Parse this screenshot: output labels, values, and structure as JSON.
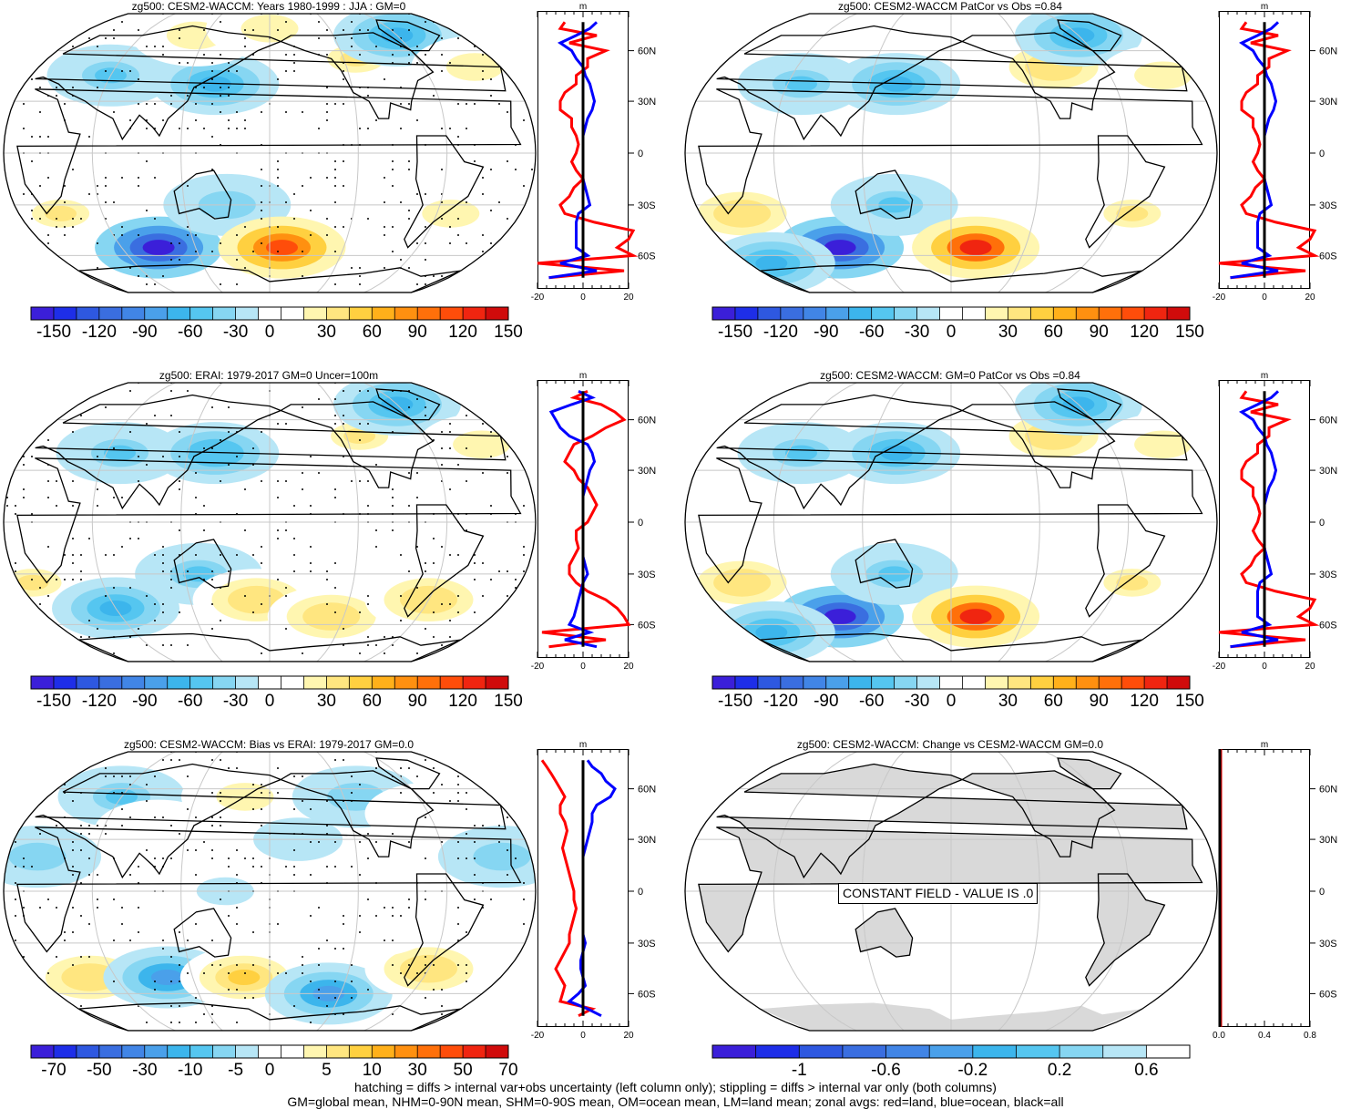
{
  "footer": {
    "line1": "hatching = diffs > internal var+obs uncertainty (left column only); stippling = diffs > internal var only (both columns)",
    "line2": "GM=global mean, NHM=0-90N mean, SHM=0-90S mean, OM=ocean mean, LM=land mean; zonal avgs: red=land, blue=ocean, black=all"
  },
  "colors": {
    "land_line": "#ff0000",
    "ocean_line": "#0000ff",
    "all_line": "#000000",
    "constant_land": "#d9d9d9"
  },
  "panels": [
    {
      "id": "p1",
      "title": "zg500: CESM2-WACCM: Years 1980-1999 : JJA : GM=0",
      "map": "field1",
      "stipple": true,
      "colorbar": {
        "labels": [
          "-150",
          "-120",
          "-90",
          "-60",
          "-30",
          "0",
          "30",
          "60",
          "90",
          "120",
          "150"
        ],
        "palette": "blue_red_21"
      },
      "zonal": {
        "unit": "m",
        "xticks": [
          "-20",
          "0",
          "20"
        ],
        "yticks": [
          "60N",
          "30N",
          "0",
          "30S",
          "60S"
        ],
        "series": "set1"
      }
    },
    {
      "id": "p2",
      "title": "zg500: CESM2-WACCM PatCor vs Obs =0.84",
      "map": "field2",
      "stipple": false,
      "colorbar": {
        "labels": [
          "-150",
          "-120",
          "-90",
          "-60",
          "-30",
          "0",
          "30",
          "60",
          "90",
          "120",
          "150"
        ],
        "palette": "blue_red_21"
      },
      "zonal": {
        "unit": "m",
        "xticks": [
          "-20",
          "0",
          "20"
        ],
        "yticks": [
          "60N",
          "30N",
          "0",
          "30S",
          "60S"
        ],
        "series": "set1"
      }
    },
    {
      "id": "p3",
      "title": "zg500: ERAI: 1979-2017 GM=0 Uncer=100m",
      "map": "field3",
      "stipple": true,
      "colorbar": {
        "labels": [
          "-150",
          "-120",
          "-90",
          "-60",
          "-30",
          "0",
          "30",
          "60",
          "90",
          "120",
          "150"
        ],
        "palette": "blue_red_21"
      },
      "zonal": {
        "unit": "m",
        "xticks": [
          "-20",
          "0",
          "20"
        ],
        "yticks": [
          "60N",
          "30N",
          "0",
          "30S",
          "60S"
        ],
        "series": "set2"
      }
    },
    {
      "id": "p4",
      "title": "zg500: CESM2-WACCM: GM=0 PatCor vs Obs =0.84",
      "map": "field2",
      "stipple": false,
      "colorbar": {
        "labels": [
          "-150",
          "-120",
          "-90",
          "-60",
          "-30",
          "0",
          "30",
          "60",
          "90",
          "120",
          "150"
        ],
        "palette": "blue_red_21"
      },
      "zonal": {
        "unit": "m",
        "xticks": [
          "-20",
          "0",
          "20"
        ],
        "yticks": [
          "60N",
          "30N",
          "0",
          "30S",
          "60S"
        ],
        "series": "set1"
      }
    },
    {
      "id": "p5",
      "title": "zg500: CESM2-WACCM: Bias vs ERAI: 1979-2017 GM=0.0",
      "map": "field5",
      "stipple": true,
      "colorbar": {
        "labels": [
          "-70",
          "-50",
          "-30",
          "-10",
          "-5",
          "0",
          "5",
          "10",
          "30",
          "50",
          "70"
        ],
        "palette": "blue_red_21"
      },
      "zonal": {
        "unit": "m",
        "xticks": [
          "-20",
          "0",
          "20"
        ],
        "yticks": [
          "60N",
          "30N",
          "0",
          "30S",
          "60S"
        ],
        "series": "set3"
      }
    },
    {
      "id": "p6",
      "title": "zg500: CESM2-WACCM: Change vs CESM2-WACCM GM=0.0",
      "map": "constant",
      "stipple": false,
      "constant_label": "CONSTANT FIELD - VALUE IS .0",
      "colorbar": {
        "labels": [
          "-1",
          "-0.6",
          "-0.2",
          "0.2",
          "0.6"
        ],
        "palette": "blue_11"
      },
      "zonal": {
        "unit": "m",
        "xticks": [
          "0.0",
          "0.4",
          "0.8"
        ],
        "yticks": [
          "60N",
          "30N",
          "0",
          "30S",
          "60S"
        ],
        "series": "none"
      }
    }
  ],
  "chart_data": {
    "type": "heatmap",
    "variable": "zg500",
    "units": "m",
    "projection": "Robinson, Pacific-centred",
    "latitude_labels": [
      "60N",
      "30N",
      "0",
      "30S",
      "60S"
    ],
    "zonal_profiles": {
      "lat": [
        80,
        75,
        70,
        65,
        60,
        55,
        50,
        45,
        40,
        35,
        30,
        25,
        20,
        15,
        10,
        5,
        0,
        -5,
        -10,
        -15,
        -20,
        -25,
        -30,
        -35,
        -40,
        -45,
        -50,
        -55,
        -60,
        -65,
        -70,
        -75
      ],
      "set1": {
        "land": [
          -8,
          -10,
          6,
          -6,
          10,
          2,
          2,
          -3,
          -3,
          -8,
          -10,
          -10,
          -5,
          -5,
          -3,
          -2,
          -3,
          -5,
          -3,
          0,
          -4,
          -6,
          -10,
          -8,
          5,
          22,
          20,
          15,
          22,
          -20,
          18,
          -15
        ],
        "ocean": [
          6,
          3,
          -3,
          -10,
          -5,
          -3,
          0,
          1,
          3,
          4,
          5,
          4,
          2,
          1,
          0,
          0,
          0,
          0,
          0,
          0,
          1,
          2,
          3,
          -2,
          -3,
          -3,
          -3,
          -3,
          2,
          -10,
          6,
          -15
        ],
        "all": [
          0,
          0,
          0,
          0,
          0,
          0,
          0,
          0,
          0,
          0,
          0,
          0,
          0,
          0,
          0,
          0,
          0,
          0,
          0,
          0,
          0,
          0,
          0,
          0,
          0,
          0,
          0,
          0,
          0,
          0,
          0,
          0
        ]
      },
      "set2": {
        "land": [
          2,
          -4,
          8,
          14,
          18,
          10,
          4,
          -4,
          -6,
          -8,
          -4,
          -2,
          2,
          4,
          6,
          4,
          2,
          -3,
          -3,
          -2,
          -4,
          -6,
          -6,
          -3,
          2,
          10,
          15,
          18,
          20,
          -18,
          10,
          -15
        ],
        "ocean": [
          -2,
          4,
          -5,
          -14,
          -12,
          -10,
          -6,
          2,
          4,
          5,
          3,
          2,
          1,
          0,
          0,
          0,
          0,
          0,
          0,
          0,
          0,
          1,
          2,
          0,
          -1,
          -2,
          -3,
          -4,
          -6,
          3,
          -8,
          6
        ],
        "all": [
          0,
          0,
          0,
          0,
          0,
          0,
          0,
          0,
          0,
          0,
          0,
          0,
          0,
          0,
          0,
          0,
          0,
          0,
          0,
          0,
          0,
          0,
          0,
          0,
          0,
          0,
          0,
          0,
          0,
          0,
          0,
          0
        ]
      },
      "set3": {
        "land": [
          -18,
          -16,
          -14,
          -12,
          -10,
          -8,
          -10,
          -10,
          -8,
          -7,
          -8,
          -9,
          -8,
          -7,
          -6,
          -5,
          -4,
          -4,
          -3,
          -4,
          -5,
          -6,
          -6,
          -8,
          -10,
          -12,
          -10,
          -8,
          -9,
          -10,
          4,
          -2
        ],
        "ocean": [
          2,
          4,
          8,
          10,
          14,
          12,
          6,
          4,
          4,
          3,
          2,
          1,
          0,
          0,
          0,
          0,
          0,
          0,
          0,
          0,
          0,
          0,
          1,
          0,
          -1,
          -1,
          0,
          1,
          -2,
          -6,
          2,
          8
        ],
        "all": [
          0,
          0,
          0,
          0,
          0,
          0,
          0,
          0,
          0,
          0,
          0,
          0,
          0,
          0,
          0,
          0,
          0,
          0,
          0,
          0,
          0,
          0,
          0,
          0,
          0,
          0,
          0,
          0,
          0,
          0,
          0,
          0
        ]
      }
    },
    "fields": {
      "field1": [
        {
          "lon": 30,
          "lat": -35,
          "v": 40
        },
        {
          "lon": 90,
          "lat": -55,
          "v": -140
        },
        {
          "lon": 150,
          "lat": -30,
          "v": -30
        },
        {
          "lon": 190,
          "lat": -55,
          "v": 120
        },
        {
          "lon": 310,
          "lat": -35,
          "v": 30
        },
        {
          "lon": 60,
          "lat": 45,
          "v": -40
        },
        {
          "lon": 140,
          "lat": 40,
          "v": -60
        },
        {
          "lon": 250,
          "lat": 55,
          "v": 40
        },
        {
          "lon": 300,
          "lat": 70,
          "v": -60
        },
        {
          "lon": 340,
          "lat": 50,
          "v": 30
        },
        {
          "lon": 110,
          "lat": 70,
          "v": 30
        },
        {
          "lon": 180,
          "lat": 75,
          "v": 30
        }
      ],
      "field2": [
        {
          "lon": 30,
          "lat": -35,
          "v": 50
        },
        {
          "lon": 90,
          "lat": -55,
          "v": -140
        },
        {
          "lon": 140,
          "lat": -30,
          "v": -40
        },
        {
          "lon": 200,
          "lat": -55,
          "v": 130
        },
        {
          "lon": 310,
          "lat": -35,
          "v": 40
        },
        {
          "lon": 70,
          "lat": 40,
          "v": -40
        },
        {
          "lon": 140,
          "lat": 40,
          "v": -60
        },
        {
          "lon": 260,
          "lat": 50,
          "v": 50
        },
        {
          "lon": 300,
          "lat": 70,
          "v": -60
        },
        {
          "lon": 340,
          "lat": 45,
          "v": 30
        },
        {
          "lon": 20,
          "lat": -65,
          "v": -60
        }
      ],
      "field3": [
        {
          "lon": 10,
          "lat": -35,
          "v": 40
        },
        {
          "lon": 60,
          "lat": -50,
          "v": -60
        },
        {
          "lon": 130,
          "lat": -30,
          "v": -40
        },
        {
          "lon": 170,
          "lat": -45,
          "v": 50
        },
        {
          "lon": 230,
          "lat": -55,
          "v": 50
        },
        {
          "lon": 300,
          "lat": -45,
          "v": 50
        },
        {
          "lon": 70,
          "lat": 40,
          "v": -40
        },
        {
          "lon": 140,
          "lat": 40,
          "v": -50
        },
        {
          "lon": 250,
          "lat": 50,
          "v": 40
        },
        {
          "lon": 300,
          "lat": 70,
          "v": -60
        },
        {
          "lon": 340,
          "lat": 45,
          "v": 30
        }
      ],
      "field5": [
        {
          "lon": 20,
          "lat": 20,
          "v": -30
        },
        {
          "lon": 60,
          "lat": 55,
          "v": -40
        },
        {
          "lon": 100,
          "lat": 35,
          "v": 20
        },
        {
          "lon": 160,
          "lat": 55,
          "v": 30
        },
        {
          "lon": 200,
          "lat": 30,
          "v": -20
        },
        {
          "lon": 250,
          "lat": 55,
          "v": -30
        },
        {
          "lon": 300,
          "lat": 45,
          "v": 20
        },
        {
          "lon": 340,
          "lat": 20,
          "v": -30
        },
        {
          "lon": 40,
          "lat": -50,
          "v": 50
        },
        {
          "lon": 100,
          "lat": -50,
          "v": -70
        },
        {
          "lon": 160,
          "lat": -50,
          "v": 60
        },
        {
          "lon": 230,
          "lat": -60,
          "v": -70
        },
        {
          "lon": 300,
          "lat": -45,
          "v": 50
        },
        {
          "lon": 150,
          "lat": 0,
          "v": -10
        },
        {
          "lon": 250,
          "lat": -20,
          "v": 10
        }
      ]
    }
  }
}
